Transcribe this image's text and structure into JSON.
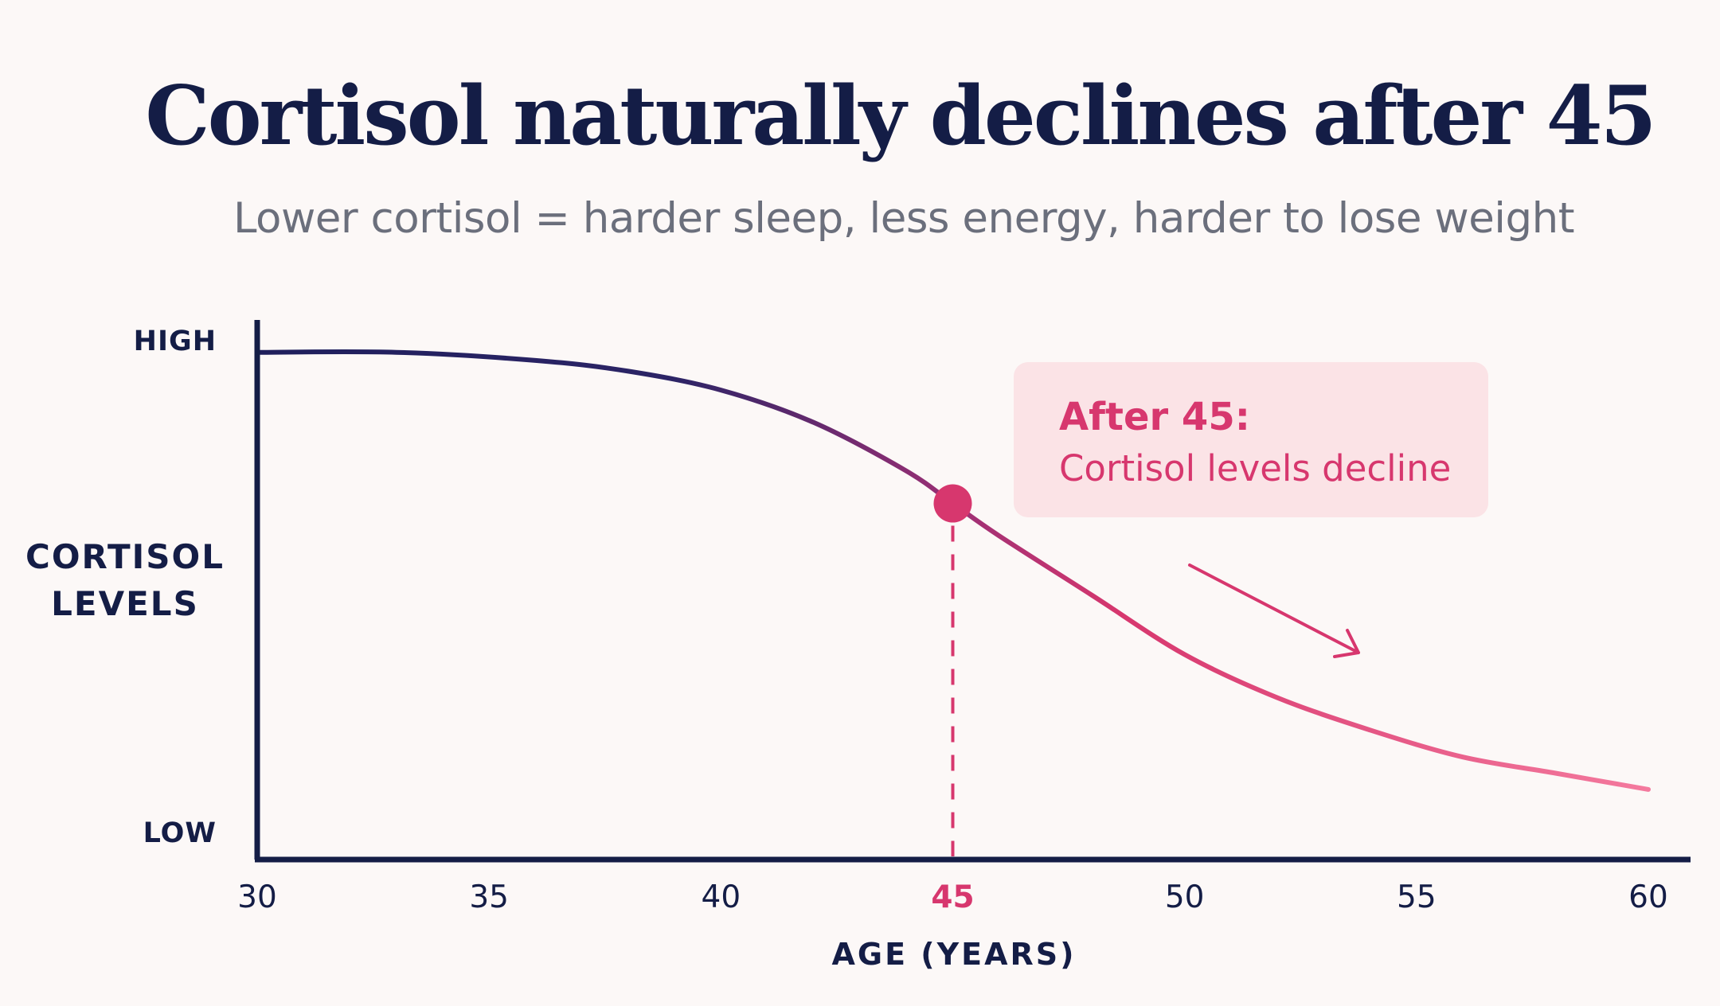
{
  "colors": {
    "background": "#fcf8f7",
    "axis": "#141d46",
    "curve_start": "#1f1f5c",
    "curve_end": "#f47a9e",
    "accent": "#d7376e",
    "annotation_bg": "#fbe3e6",
    "subtitle": "#6b6f7c"
  },
  "chart_data": {
    "type": "line",
    "title": "Cortisol naturally declines after 45",
    "subtitle": "Lower cortisol = harder sleep, less energy, harder to lose weight",
    "xlabel": "AGE (YEARS)",
    "ylabel_lines": [
      "CORTISOL",
      "LEVELS"
    ],
    "xlim": [
      30,
      60
    ],
    "ylim": [
      0,
      1
    ],
    "x_ticks": [
      "30",
      "35",
      "40",
      "45",
      "50",
      "55",
      "60"
    ],
    "highlight_tick": "45",
    "y_level_labels": {
      "high": "HIGH",
      "low": "LOW"
    },
    "grid": false,
    "legend": "none",
    "series": [
      {
        "x": [
          30,
          33,
          36,
          38,
          40,
          42,
          44,
          45,
          46,
          48,
          50,
          52,
          54,
          56,
          58,
          60
        ],
        "y": [
          0.94,
          0.94,
          0.925,
          0.905,
          0.87,
          0.81,
          0.72,
          0.66,
          0.6,
          0.49,
          0.38,
          0.3,
          0.24,
          0.19,
          0.16,
          0.13
        ]
      }
    ],
    "marker": {
      "x": 45,
      "y": 0.66
    },
    "reference_line": {
      "x": 45,
      "style": "dashed"
    },
    "annotation": {
      "heading": "After 45:",
      "text": "Cortisol levels decline"
    }
  }
}
